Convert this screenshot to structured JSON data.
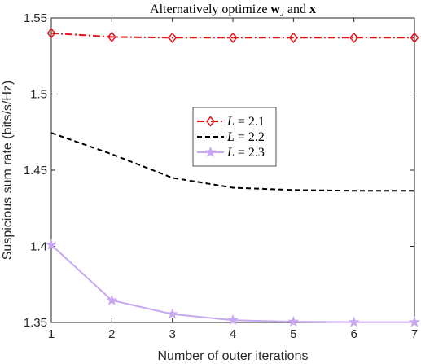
{
  "chart_data": {
    "type": "line",
    "title_prefix": "Alternatively optimize ",
    "title_w": "w",
    "title_w_sub": "J",
    "title_and": " and ",
    "title_x": "x",
    "xlabel": "Number of outer iterations",
    "ylabel": "Suspicious sum rate (bits/s/Hz)",
    "x": [
      1,
      2,
      3,
      4,
      5,
      6,
      7
    ],
    "xlim": [
      1,
      7
    ],
    "ylim": [
      1.35,
      1.55
    ],
    "xticks": [
      1,
      2,
      3,
      4,
      5,
      6,
      7
    ],
    "yticks": [
      1.35,
      1.4,
      1.45,
      1.5,
      1.55
    ],
    "ytick_labels": [
      "1.35",
      "1.4",
      "1.45",
      "1.5",
      "1.55"
    ],
    "legend_position": "center",
    "series": [
      {
        "name": "L = 2.1",
        "legend_var": "L",
        "legend_val": " = 2.1",
        "values": [
          1.54,
          1.5375,
          1.537,
          1.537,
          1.537,
          1.537,
          1.537
        ],
        "color": "#e8141c",
        "style": "dash-dot",
        "marker": "diamond"
      },
      {
        "name": "L = 2.2",
        "legend_var": "L",
        "legend_val": " = 2.2",
        "values": [
          1.4745,
          1.4605,
          1.445,
          1.4385,
          1.437,
          1.4365,
          1.4365
        ],
        "color": "#000000",
        "style": "dashed",
        "marker": "none"
      },
      {
        "name": "L = 2.3",
        "legend_var": "L",
        "legend_val": " = 2.3",
        "values": [
          1.401,
          1.3645,
          1.3555,
          1.3515,
          1.3505,
          1.3502,
          1.3502
        ],
        "color": "#c8a8f0",
        "style": "solid",
        "marker": "star"
      }
    ]
  }
}
